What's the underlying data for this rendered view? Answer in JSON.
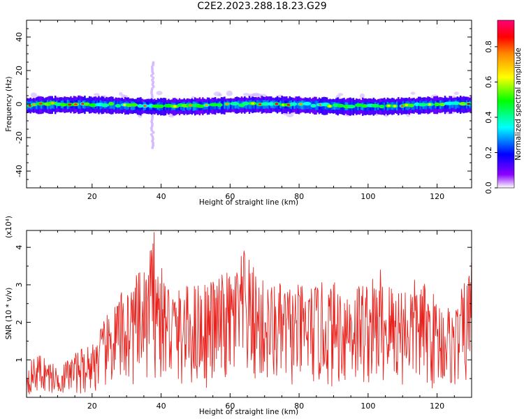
{
  "title": "C2E2.2023.288.18.23.G29",
  "chart_data": [
    {
      "type": "heatmap",
      "xlabel": "Height of straight line (km)",
      "ylabel": "Frequency (Hz)",
      "xlim": [
        1,
        130
      ],
      "ylim": [
        -50,
        50
      ],
      "xticks": [
        20,
        40,
        60,
        80,
        100,
        120
      ],
      "yticks": [
        -40,
        -20,
        0,
        20,
        40
      ],
      "colorbar": {
        "label": "Normalized spectral amplitude",
        "range": [
          0,
          0.95
        ],
        "ticks": [
          "0.0",
          "0.2",
          "0.4",
          "0.6",
          "0.8"
        ],
        "colors": [
          "#ffffff",
          "#6a00ff",
          "#0000ff",
          "#00ffff",
          "#00ff00",
          "#ffff00",
          "#ff8800",
          "#ff0000",
          "#ff0077"
        ]
      },
      "band": {
        "center_freq_hz": 0,
        "core_halfwidth_hz": 2,
        "spread_halfwidth_hz": 4,
        "burst": {
          "x_km": 37.5,
          "freq_range_hz": [
            -26,
            25
          ]
        }
      }
    },
    {
      "type": "line",
      "xlabel": "Height of straight line (km)",
      "ylabel": "SNR (10 * v/v)",
      "scale_label": "(x10⁴)",
      "xlim": [
        1,
        130
      ],
      "ylim": [
        0,
        4.45
      ],
      "xticks": [
        20,
        40,
        60,
        80,
        100,
        120
      ],
      "yticks": [
        1,
        2,
        3,
        4
      ],
      "color": "#e8231e",
      "envelope_km": [
        1,
        5,
        10,
        15,
        20,
        25,
        30,
        35,
        38,
        40,
        45,
        50,
        55,
        60,
        64,
        70,
        80,
        90,
        100,
        110,
        115,
        120,
        125,
        130
      ],
      "envelope_snr": [
        0.9,
        1.2,
        0.8,
        1.2,
        1.5,
        2.3,
        3.1,
        3.4,
        4.4,
        3.5,
        2.9,
        3.1,
        3.2,
        3.4,
        3.9,
        3.1,
        3.0,
        3.1,
        3.2,
        3.1,
        3.2,
        2.7,
        2.4,
        3.6
      ],
      "peaks": [
        {
          "x_km": 38,
          "snr": 4.4
        },
        {
          "x_km": 64,
          "snr": 3.9
        },
        {
          "x_km": 103.5,
          "snr": 3.4
        },
        {
          "x_km": 130,
          "snr": 3.6
        }
      ]
    }
  ]
}
